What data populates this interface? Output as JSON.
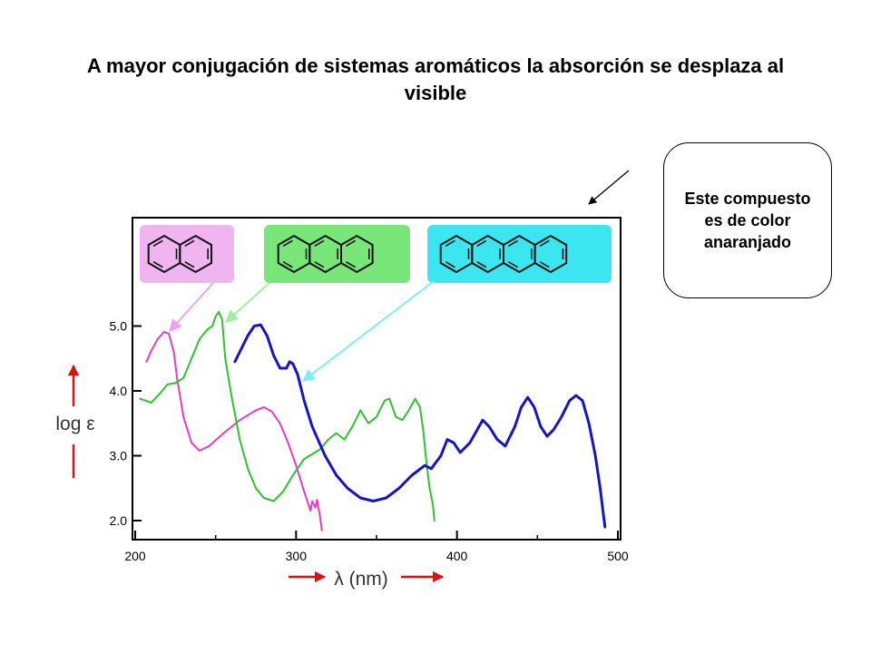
{
  "slide": {
    "title": "A mayor conjugación de sistemas aromáticos la absorción se desplaza al visible",
    "note": "Este compuesto es de color anaranjado"
  },
  "chart_data": {
    "type": "line",
    "xlabel": "λ (nm)",
    "ylabel": "log ε",
    "xlim": [
      200,
      500
    ],
    "ylim": [
      1.8,
      6.6
    ],
    "x_ticks": [
      "200",
      "300",
      "400",
      "500"
    ],
    "y_ticks": [
      "2.0",
      "3.0",
      "4.0",
      "5.0"
    ],
    "grid": false,
    "colors": {
      "naphthalene": "#e63cc8",
      "anthracene": "#2fc22f",
      "tetracene": "#1414c8",
      "box_naphthalene": "#f0b4f0",
      "box_anthracene": "#78e678",
      "box_tetracene": "#3ce6f0",
      "arrow_naphthalene": "#f0a0f0",
      "arrow_anthracene": "#a0eea0",
      "arrow_tetracene": "#7ceef6",
      "axis_arrows": "#e01010"
    },
    "series": [
      {
        "key": "naphthalene",
        "rings": 2,
        "points": [
          [
            207,
            4.45
          ],
          [
            210,
            4.62
          ],
          [
            214,
            4.8
          ],
          [
            218,
            4.91
          ],
          [
            221,
            4.88
          ],
          [
            224,
            4.6
          ],
          [
            226,
            4.2
          ],
          [
            230,
            3.6
          ],
          [
            235,
            3.2
          ],
          [
            240,
            3.08
          ],
          [
            246,
            3.15
          ],
          [
            255,
            3.35
          ],
          [
            265,
            3.55
          ],
          [
            275,
            3.7
          ],
          [
            280,
            3.75
          ],
          [
            285,
            3.68
          ],
          [
            290,
            3.5
          ],
          [
            295,
            3.2
          ],
          [
            300,
            2.85
          ],
          [
            305,
            2.45
          ],
          [
            309,
            2.15
          ],
          [
            310,
            2.3
          ],
          [
            312,
            2.2
          ],
          [
            313,
            2.32
          ],
          [
            315,
            2.05
          ],
          [
            316,
            1.85
          ]
        ]
      },
      {
        "key": "anthracene",
        "rings": 3,
        "points": [
          [
            203,
            3.88
          ],
          [
            210,
            3.82
          ],
          [
            215,
            3.95
          ],
          [
            220,
            4.1
          ],
          [
            225,
            4.12
          ],
          [
            230,
            4.2
          ],
          [
            235,
            4.5
          ],
          [
            240,
            4.8
          ],
          [
            245,
            4.95
          ],
          [
            248,
            5.0
          ],
          [
            250,
            5.15
          ],
          [
            252,
            5.22
          ],
          [
            254,
            5.1
          ],
          [
            256,
            4.5
          ],
          [
            260,
            3.9
          ],
          [
            265,
            3.25
          ],
          [
            270,
            2.8
          ],
          [
            275,
            2.5
          ],
          [
            280,
            2.35
          ],
          [
            286,
            2.3
          ],
          [
            292,
            2.45
          ],
          [
            298,
            2.7
          ],
          [
            305,
            2.95
          ],
          [
            315,
            3.1
          ],
          [
            320,
            3.25
          ],
          [
            325,
            3.35
          ],
          [
            330,
            3.25
          ],
          [
            335,
            3.45
          ],
          [
            340,
            3.7
          ],
          [
            345,
            3.5
          ],
          [
            350,
            3.6
          ],
          [
            355,
            3.85
          ],
          [
            358,
            3.88
          ],
          [
            362,
            3.6
          ],
          [
            366,
            3.55
          ],
          [
            370,
            3.7
          ],
          [
            374,
            3.88
          ],
          [
            377,
            3.75
          ],
          [
            379,
            3.4
          ],
          [
            381,
            2.9
          ],
          [
            383,
            2.5
          ],
          [
            385,
            2.25
          ],
          [
            386,
            2.0
          ]
        ]
      },
      {
        "key": "tetracene",
        "rings": 4,
        "points": [
          [
            262,
            4.45
          ],
          [
            266,
            4.65
          ],
          [
            270,
            4.85
          ],
          [
            274,
            5.0
          ],
          [
            278,
            5.02
          ],
          [
            282,
            4.85
          ],
          [
            286,
            4.55
          ],
          [
            290,
            4.35
          ],
          [
            294,
            4.35
          ],
          [
            296,
            4.45
          ],
          [
            298,
            4.42
          ],
          [
            301,
            4.25
          ],
          [
            305,
            3.85
          ],
          [
            310,
            3.45
          ],
          [
            318,
            3.0
          ],
          [
            325,
            2.7
          ],
          [
            332,
            2.5
          ],
          [
            340,
            2.35
          ],
          [
            348,
            2.3
          ],
          [
            356,
            2.35
          ],
          [
            364,
            2.5
          ],
          [
            372,
            2.7
          ],
          [
            380,
            2.85
          ],
          [
            384,
            2.8
          ],
          [
            390,
            3.0
          ],
          [
            394,
            3.25
          ],
          [
            398,
            3.2
          ],
          [
            402,
            3.05
          ],
          [
            408,
            3.2
          ],
          [
            413,
            3.42
          ],
          [
            416,
            3.55
          ],
          [
            420,
            3.45
          ],
          [
            425,
            3.25
          ],
          [
            430,
            3.15
          ],
          [
            436,
            3.45
          ],
          [
            440,
            3.75
          ],
          [
            444,
            3.9
          ],
          [
            448,
            3.75
          ],
          [
            452,
            3.45
          ],
          [
            456,
            3.3
          ],
          [
            460,
            3.4
          ],
          [
            465,
            3.6
          ],
          [
            470,
            3.85
          ],
          [
            474,
            3.93
          ],
          [
            478,
            3.85
          ],
          [
            482,
            3.5
          ],
          [
            486,
            3.0
          ],
          [
            489,
            2.5
          ],
          [
            491,
            2.1
          ],
          [
            492,
            1.9
          ]
        ]
      }
    ]
  }
}
